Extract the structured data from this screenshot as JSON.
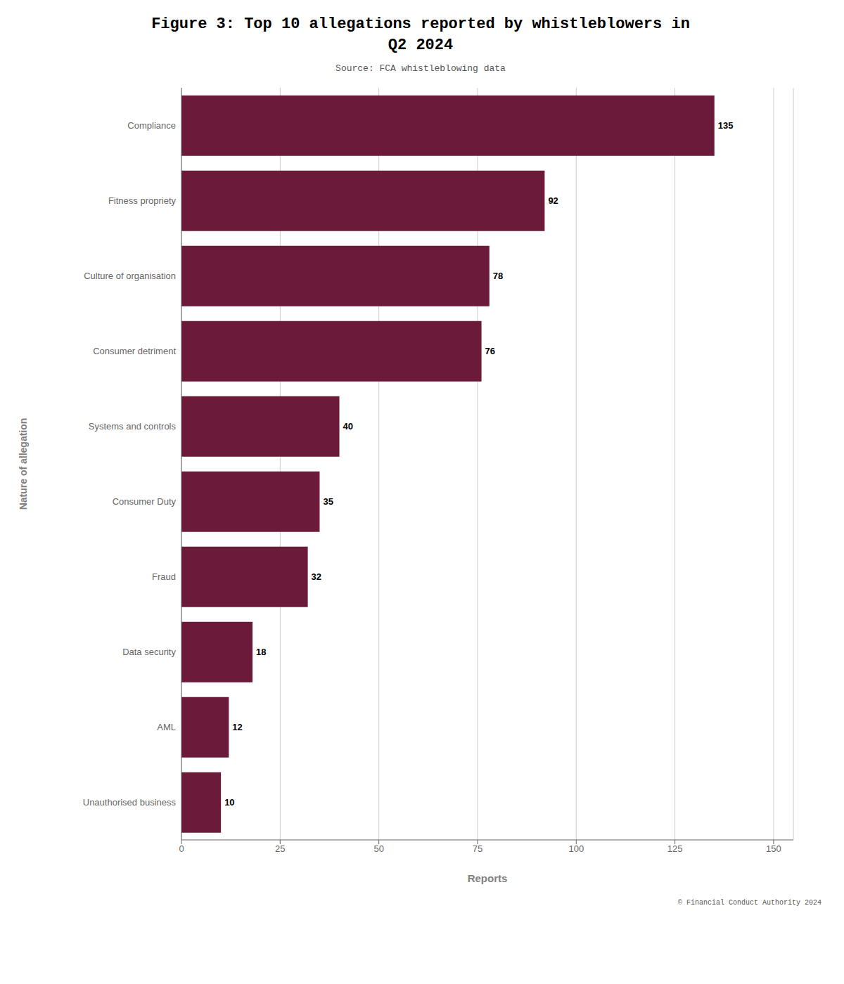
{
  "chart_data": {
    "type": "bar",
    "title": "Figure 3: Top 10 allegations reported by whistleblowers in\nQ2 2024",
    "subtitle": "Source: FCA whistleblowing data",
    "annotations": [
      "© Financial Conduct Authority 2024"
    ],
    "xlabel": "Reports",
    "ylabel": "Nature of allegation",
    "categories": [
      "Unauthorised business",
      "AML",
      "Data security",
      "Fraud",
      "Consumer Duty",
      "Systems and controls",
      "Consumer detriment",
      "Culture of organisation",
      "Fitness propriety",
      "Compliance"
    ],
    "values": [
      10,
      12,
      18,
      32,
      35,
      40,
      76,
      78,
      92,
      135
    ],
    "color": "#6B1A3A",
    "xlim": [
      0,
      155
    ],
    "xticks": [
      0,
      25,
      50,
      75,
      100,
      125,
      150
    ],
    "grid": true,
    "orientation": "horizontal",
    "data_labels": true
  }
}
